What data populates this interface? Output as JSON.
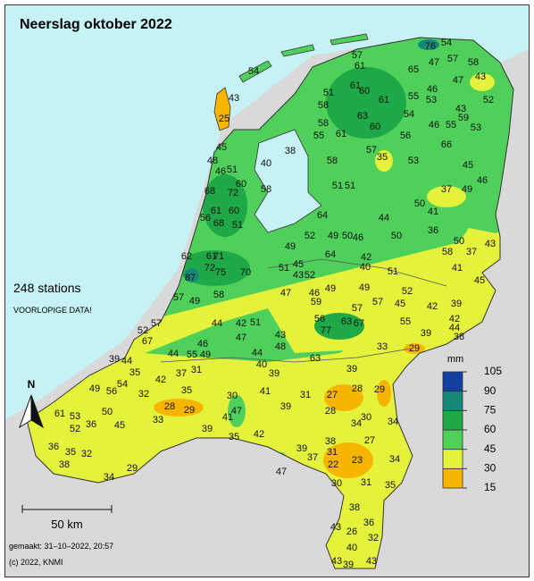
{
  "title": "Neerslag oktober 2022",
  "stations_note": "248 stations",
  "data_note": "VOORLOPIGE DATA!",
  "north": "N",
  "scale": "50 km",
  "made": "gemaakt: 31–10–2022, 20:57",
  "copyright": "(c) 2022, KNMI",
  "legend": {
    "unit": "mm",
    "ticks": [
      15,
      30,
      45,
      60,
      75,
      90,
      105
    ],
    "colors": [
      "#f7b500",
      "#e4f23c",
      "#4fd05a",
      "#1fa847",
      "#16887a",
      "#1240a0"
    ]
  },
  "stations": [
    57,
    61,
    76,
    54,
    65,
    47,
    57,
    58,
    43,
    52,
    47,
    46,
    55,
    53,
    61,
    54,
    43,
    59,
    51,
    61,
    58,
    60,
    63,
    58,
    55,
    61,
    60,
    56,
    46,
    55,
    53,
    66,
    57,
    35,
    53,
    45,
    46,
    37,
    49,
    38,
    58,
    51,
    51,
    50,
    41,
    44,
    64,
    52,
    49,
    50,
    46,
    50,
    36,
    50,
    43,
    58,
    37,
    41,
    45,
    49,
    45,
    43,
    52,
    64,
    42,
    40,
    51,
    51,
    47,
    46,
    59,
    49,
    49,
    57,
    52,
    42,
    39,
    43,
    25,
    45,
    48,
    46,
    51,
    54,
    40,
    58,
    60,
    72,
    68,
    61,
    56,
    60,
    68,
    51,
    62,
    72,
    61,
    71,
    87,
    75,
    70,
    58,
    57,
    49,
    44,
    42,
    57,
    52,
    67,
    46,
    44,
    55,
    49,
    51,
    47,
    48,
    43,
    44,
    40,
    39,
    63,
    56,
    77,
    63,
    67,
    57,
    55,
    45,
    39,
    42,
    44,
    38,
    33,
    29,
    39,
    39,
    44,
    35,
    42,
    37,
    31,
    49,
    56,
    54,
    32,
    35,
    28,
    29,
    30,
    41,
    39,
    31,
    27,
    28,
    29,
    28,
    61,
    53,
    50,
    36,
    52,
    45,
    33,
    47,
    41,
    39,
    35,
    42,
    34,
    30,
    34,
    38,
    31,
    39,
    37,
    47,
    22,
    23,
    27,
    34,
    35,
    30,
    31,
    38,
    36,
    43,
    26,
    32,
    40,
    43,
    39,
    43,
    36,
    35,
    32,
    38,
    29,
    34
  ]
}
